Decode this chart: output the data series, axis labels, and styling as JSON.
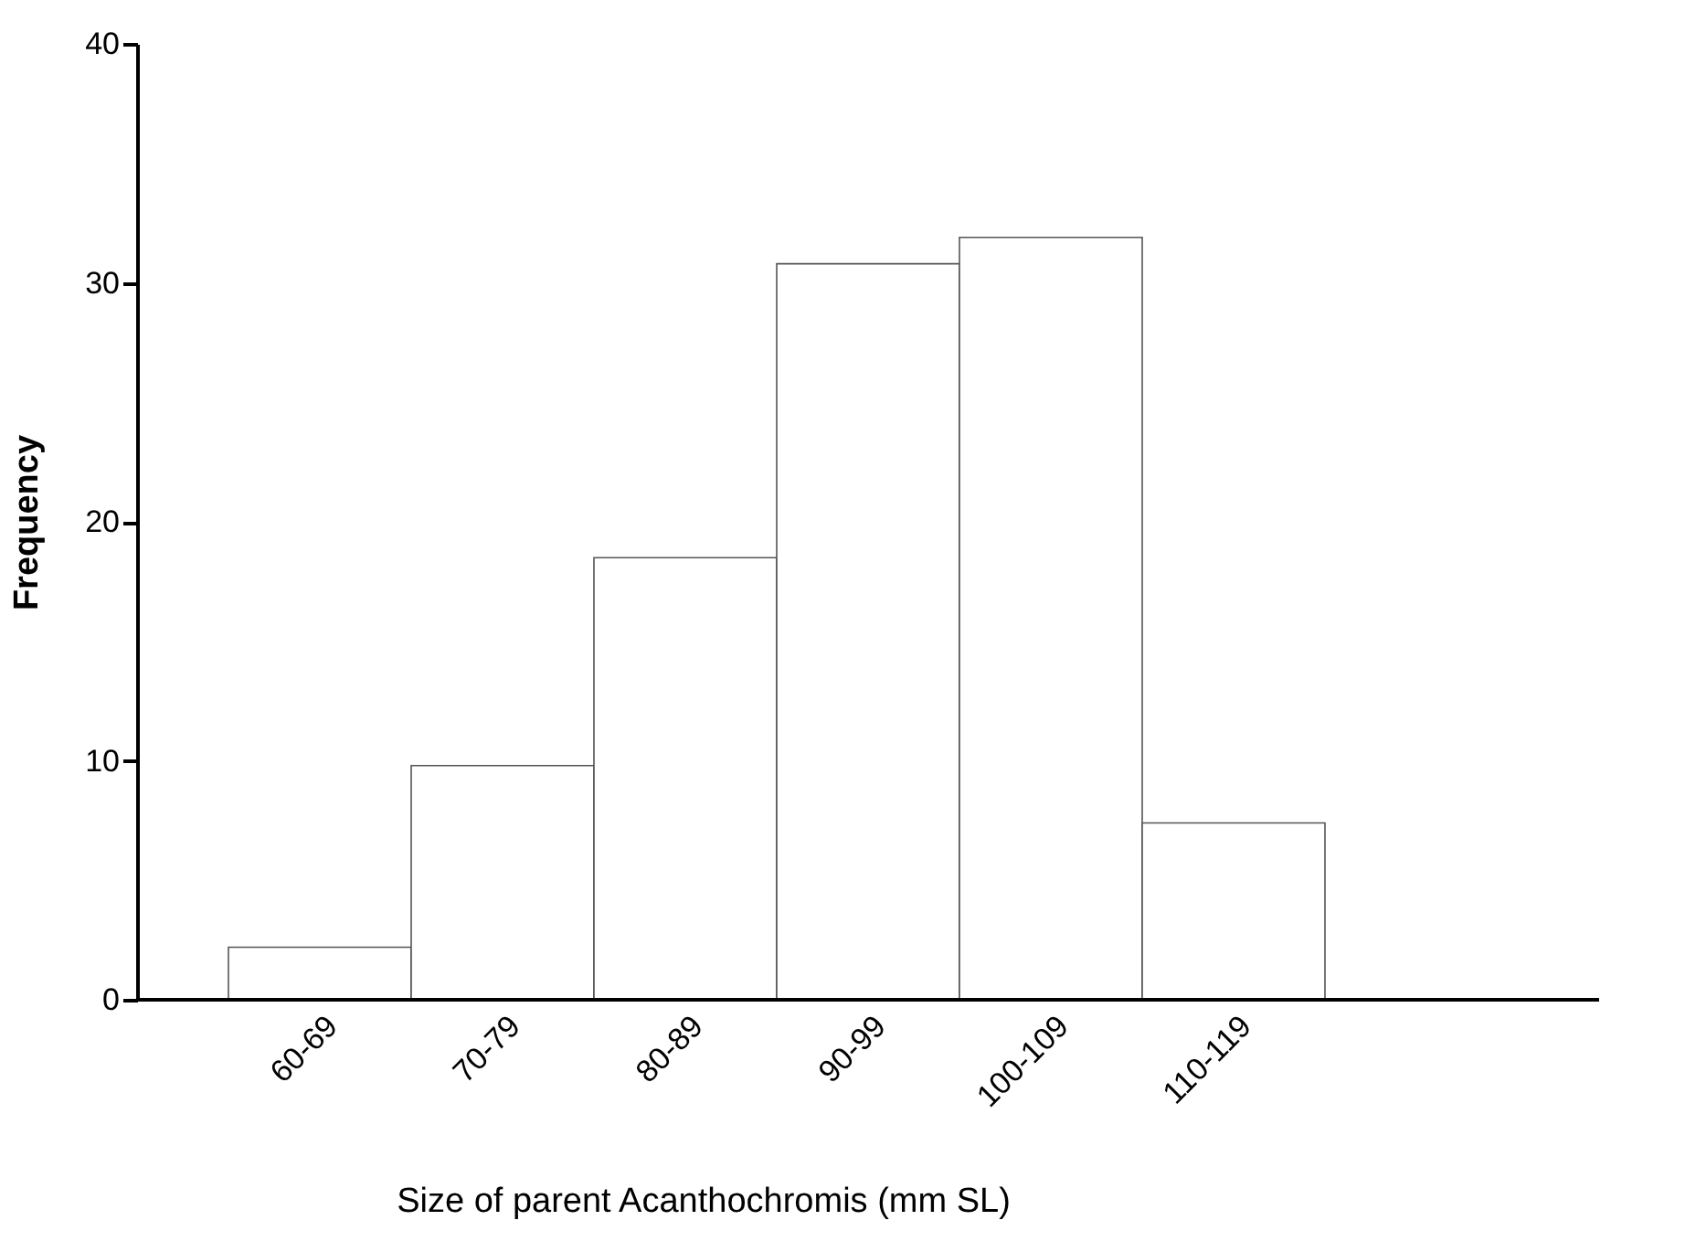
{
  "chart_data": {
    "type": "bar",
    "xlabel": "Size of parent Acanthochromis (mm SL)",
    "ylabel": "Frequency",
    "categories": [
      "60-69",
      "70-79",
      "80-89",
      "90-99",
      "100-109",
      "110-119"
    ],
    "values": [
      2.2,
      9.8,
      18.5,
      30.8,
      31.9,
      7.4
    ],
    "color": "#ffffff",
    "ylim": [
      0,
      40
    ],
    "yticks": [
      0,
      10,
      20,
      30,
      40
    ],
    "grid": false
  }
}
